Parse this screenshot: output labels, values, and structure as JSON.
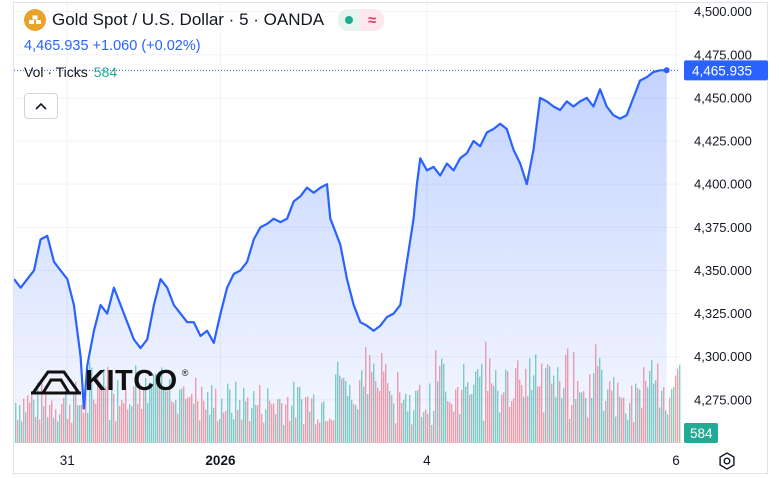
{
  "header": {
    "symbol_title": "Gold Spot / U.S. Dollar · 5 · OANDA",
    "last_price": "4,465.935",
    "change": "+1.060",
    "change_pct": "(+0.02%)",
    "vol_label": "Vol · Ticks",
    "vol_value": "584"
  },
  "watermark": {
    "brand": "KITCO",
    "registered": "®"
  },
  "colors": {
    "line": "#2962ff",
    "area_top": "rgba(41,98,255,0.28)",
    "area_bottom": "rgba(41,98,255,0.04)",
    "vol_up": "#22ab94",
    "vol_down": "#f7525f",
    "badge_blue": "#2962ff",
    "badge_teal": "#22ab94"
  },
  "icons": [
    "gold-logo-icon",
    "status-dot-icon",
    "wave-icon",
    "chevron-up-icon",
    "settings-icon"
  ],
  "chart_data": {
    "type": "area",
    "title": "Gold Spot / U.S. Dollar · 5 · OANDA",
    "ylim": [
      4250,
      4505
    ],
    "y_ticks": [
      "4,500.000",
      "4,475.000",
      "4,450.000",
      "4,425.000",
      "4,400.000",
      "4,375.000",
      "4,350.000",
      "4,325.000",
      "4,300.000",
      "4,275.000"
    ],
    "y_tick_values": [
      4500,
      4475,
      4450,
      4425,
      4400,
      4375,
      4350,
      4325,
      4300,
      4275
    ],
    "x_ticks": [
      {
        "label": "31",
        "bold": false,
        "pos": 0.08
      },
      {
        "label": "2026",
        "bold": true,
        "pos": 0.31
      },
      {
        "label": "4",
        "bold": false,
        "pos": 0.62
      },
      {
        "label": "6",
        "bold": false,
        "pos": 0.994
      }
    ],
    "last_price_label": "4,465.935",
    "last_price_value": 4465.935,
    "volume_label": "584",
    "grid": true,
    "series": [
      {
        "name": "Gold Spot",
        "points": [
          [
            0.0,
            4345
          ],
          [
            0.01,
            4340
          ],
          [
            0.02,
            4345
          ],
          [
            0.03,
            4350
          ],
          [
            0.04,
            4368
          ],
          [
            0.05,
            4370
          ],
          [
            0.06,
            4355
          ],
          [
            0.07,
            4350
          ],
          [
            0.08,
            4345
          ],
          [
            0.09,
            4330
          ],
          [
            0.1,
            4300
          ],
          [
            0.105,
            4270
          ],
          [
            0.11,
            4295
          ],
          [
            0.12,
            4315
          ],
          [
            0.13,
            4330
          ],
          [
            0.14,
            4325
          ],
          [
            0.15,
            4340
          ],
          [
            0.16,
            4330
          ],
          [
            0.17,
            4320
          ],
          [
            0.18,
            4310
          ],
          [
            0.19,
            4305
          ],
          [
            0.2,
            4310
          ],
          [
            0.21,
            4330
          ],
          [
            0.22,
            4345
          ],
          [
            0.23,
            4340
          ],
          [
            0.24,
            4330
          ],
          [
            0.25,
            4325
          ],
          [
            0.26,
            4320
          ],
          [
            0.27,
            4320
          ],
          [
            0.28,
            4312
          ],
          [
            0.29,
            4315
          ],
          [
            0.3,
            4308
          ],
          [
            0.31,
            4325
          ],
          [
            0.32,
            4340
          ],
          [
            0.33,
            4348
          ],
          [
            0.34,
            4350
          ],
          [
            0.35,
            4355
          ],
          [
            0.36,
            4368
          ],
          [
            0.37,
            4375
          ],
          [
            0.38,
            4377
          ],
          [
            0.39,
            4380
          ],
          [
            0.4,
            4378
          ],
          [
            0.41,
            4380
          ],
          [
            0.42,
            4390
          ],
          [
            0.43,
            4393
          ],
          [
            0.44,
            4398
          ],
          [
            0.45,
            4395
          ],
          [
            0.46,
            4398
          ],
          [
            0.47,
            4400
          ],
          [
            0.475,
            4380
          ],
          [
            0.48,
            4375
          ],
          [
            0.49,
            4365
          ],
          [
            0.5,
            4345
          ],
          [
            0.51,
            4330
          ],
          [
            0.52,
            4320
          ],
          [
            0.53,
            4318
          ],
          [
            0.54,
            4315
          ],
          [
            0.55,
            4318
          ],
          [
            0.56,
            4323
          ],
          [
            0.57,
            4325
          ],
          [
            0.58,
            4330
          ],
          [
            0.59,
            4355
          ],
          [
            0.6,
            4380
          ],
          [
            0.605,
            4400
          ],
          [
            0.61,
            4415
          ],
          [
            0.62,
            4408
          ],
          [
            0.63,
            4410
          ],
          [
            0.64,
            4405
          ],
          [
            0.65,
            4412
          ],
          [
            0.66,
            4408
          ],
          [
            0.67,
            4415
          ],
          [
            0.68,
            4418
          ],
          [
            0.69,
            4425
          ],
          [
            0.7,
            4422
          ],
          [
            0.71,
            4430
          ],
          [
            0.72,
            4432
          ],
          [
            0.73,
            4435
          ],
          [
            0.74,
            4432
          ],
          [
            0.75,
            4420
          ],
          [
            0.76,
            4412
          ],
          [
            0.77,
            4400
          ],
          [
            0.78,
            4420
          ],
          [
            0.79,
            4450
          ],
          [
            0.8,
            4448
          ],
          [
            0.81,
            4445
          ],
          [
            0.82,
            4443
          ],
          [
            0.83,
            4448
          ],
          [
            0.84,
            4445
          ],
          [
            0.85,
            4448
          ],
          [
            0.86,
            4450
          ],
          [
            0.87,
            4445
          ],
          [
            0.88,
            4455
          ],
          [
            0.89,
            4445
          ],
          [
            0.9,
            4440
          ],
          [
            0.91,
            4438
          ],
          [
            0.92,
            4440
          ],
          [
            0.93,
            4450
          ],
          [
            0.94,
            4460
          ],
          [
            0.95,
            4462
          ],
          [
            0.96,
            4465
          ],
          [
            0.97,
            4466
          ],
          [
            0.98,
            4466
          ]
        ]
      }
    ]
  }
}
